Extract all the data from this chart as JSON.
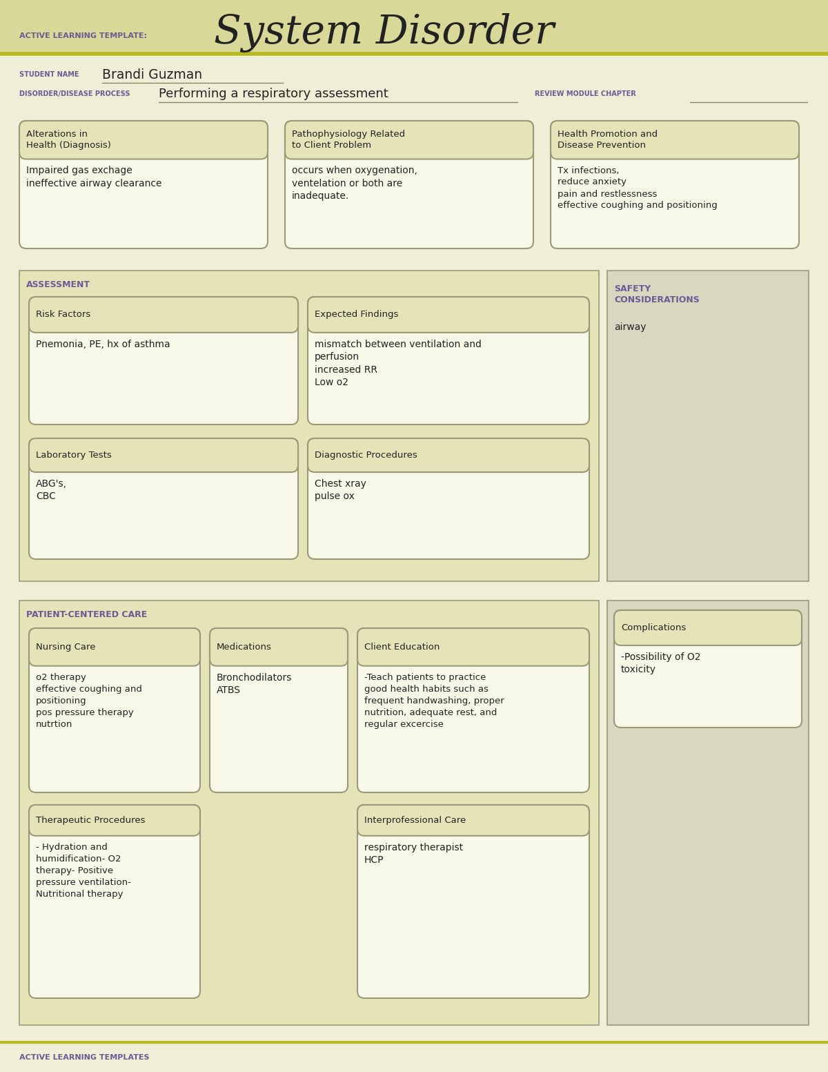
{
  "bg_color": "#efefd8",
  "header_bg": "#d8d898",
  "section_bg": "#e4e4b8",
  "box_bg": "#f8f8e8",
  "box_title_bg": "#e4e4b8",
  "box_border": "#9a9a78",
  "section_border": "#9a9a78",
  "purple": "#6a5a95",
  "dark_text": "#222222",
  "olive_line": "#b8b820",
  "title_label": "ACTIVE LEARNING TEMPLATE:",
  "title_main": "System Disorder",
  "student_label": "STUDENT NAME",
  "student_name": "Brandi Guzman",
  "disorder_label": "DISORDER/DISEASE PROCESS",
  "disorder_value": "Performing a respiratory assessment",
  "review_label": "REVIEW MODULE CHAPTER",
  "box1_title": "Alterations in\nHealth (Diagnosis)",
  "box1_content": "Impaired gas exchage\nineffective airway clearance",
  "box2_title": "Pathophysiology Related\nto Client Problem",
  "box2_content": "occurs when oxygenation,\nventelation or both are\ninadequate.",
  "box3_title": "Health Promotion and\nDisease Prevention",
  "box3_content": "Tx infections,\nreduce anxiety\npain and restlessness\neffective coughing and positioning",
  "assessment_label": "ASSESSMENT",
  "safety_label": "SAFETY\nCONSIDERATIONS",
  "safety_content": "airway",
  "risk_title": "Risk Factors",
  "risk_content": "Pnemonia, PE, hx of asthma",
  "expected_title": "Expected Findings",
  "expected_content": "mismatch between ventilation and\nperfusion\nincreased RR\nLow o2",
  "lab_title": "Laboratory Tests",
  "lab_content": "ABG's,\nCBC",
  "diag_title": "Diagnostic Procedures",
  "diag_content": "Chest xray\npulse ox",
  "patient_care_label": "PATIENT-CENTERED CARE",
  "complications_title": "Complications",
  "complications_content": "-Possibility of O2\ntoxicity",
  "nursing_title": "Nursing Care",
  "nursing_content": "o2 therapy\neffective coughing and\npositioning\npos pressure therapy\nnutrtion",
  "meds_title": "Medications",
  "meds_content": "Bronchodilators\nATBS",
  "client_ed_title": "Client Education",
  "client_ed_content": "-Teach patients to practice\ngood health habits such as\nfrequent handwashing, proper\nnutrition, adequate rest, and\nregular excercise",
  "therapeutic_title": "Therapeutic Procedures",
  "therapeutic_content": "- Hydration and\nhumidification- O2\ntherapy- Positive\npressure ventilation-\nNutritional therapy",
  "interprof_title": "Interprofessional Care",
  "interprof_content": "respiratory therapist\nHCP",
  "footer_text": "ACTIVE LEARNING TEMPLATES"
}
